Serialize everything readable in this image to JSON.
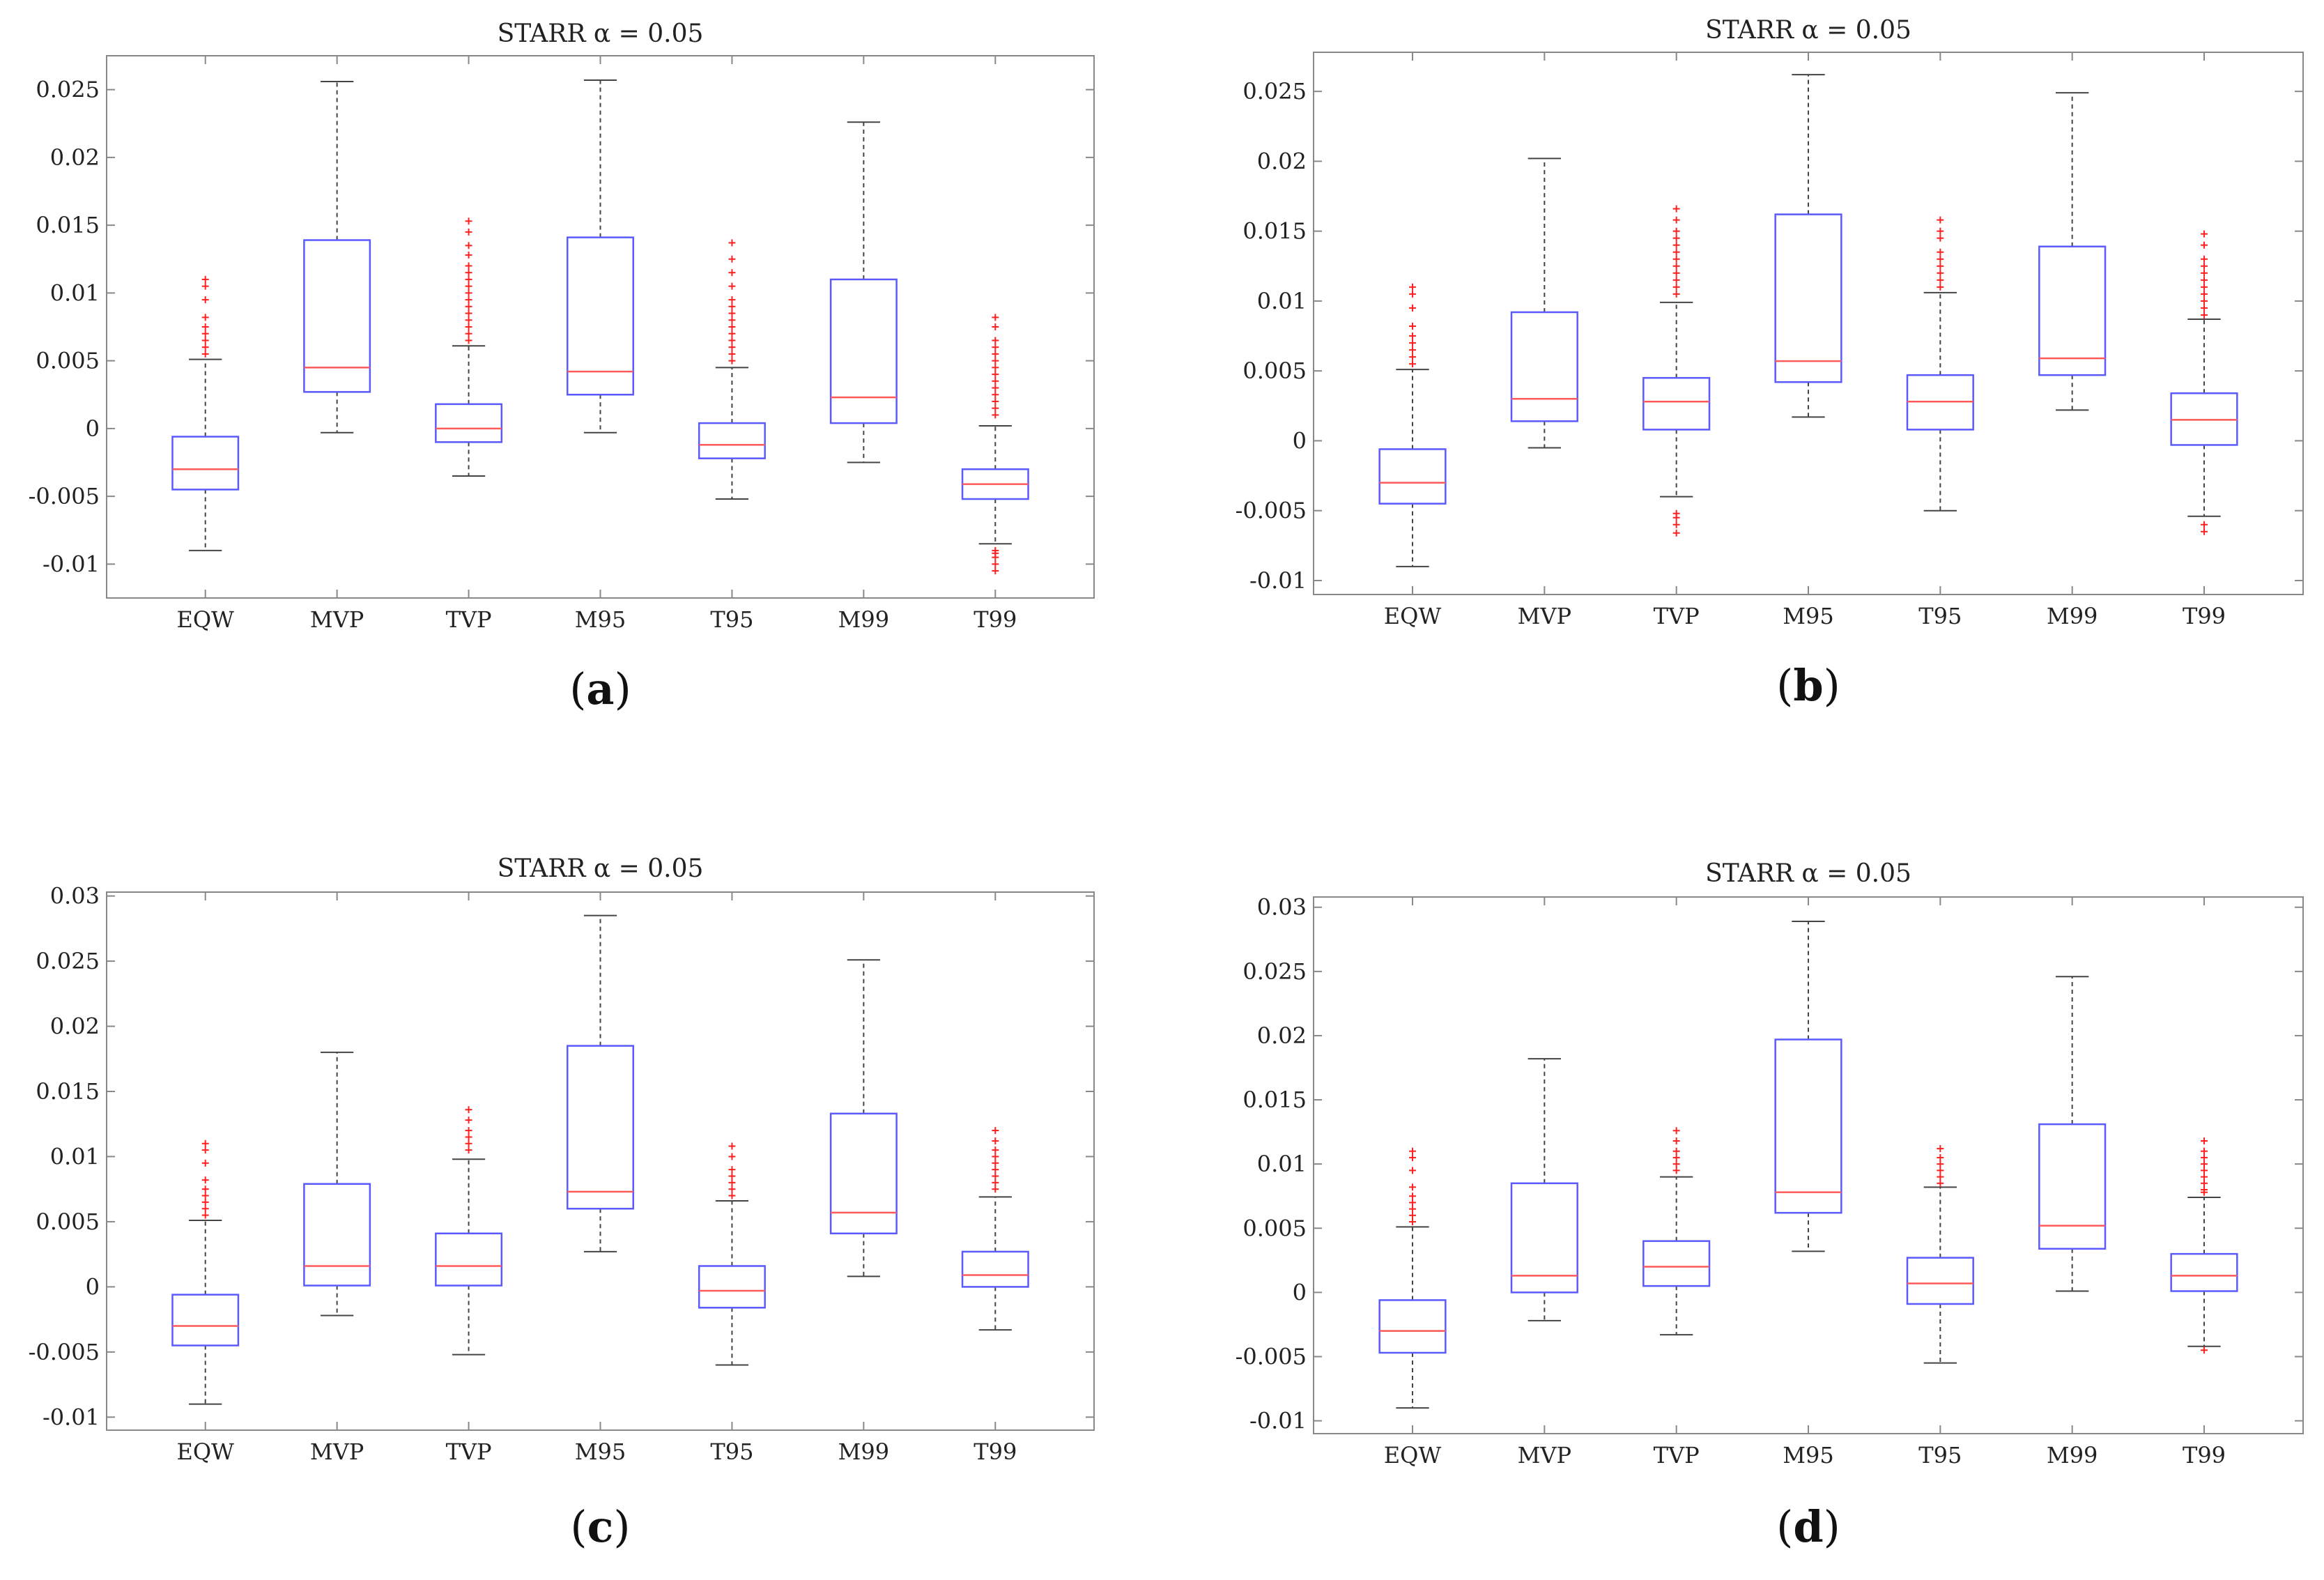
{
  "colors": {
    "box": "#5a5aff",
    "median": "#ff5a5a",
    "whisker": "#444444",
    "outlier": "#ff2020",
    "frame": "#888888"
  },
  "chart_data": [
    {
      "type": "box",
      "panel": "(a)",
      "panel_letter": "a",
      "title": "STARR α = 0.05",
      "categories": [
        "EQW",
        "MVP",
        "TVP",
        "M95",
        "T95",
        "M99",
        "T99"
      ],
      "ylim": [
        -0.0125,
        0.0275
      ],
      "yticks": [
        -0.01,
        -0.005,
        0,
        0.005,
        0.01,
        0.015,
        0.02,
        0.025
      ],
      "ytick_labels": [
        "-0.01",
        "-0.005",
        "0",
        "0.005",
        "0.01",
        "0.015",
        "0.02",
        "0.025"
      ],
      "boxes": [
        {
          "lw": -0.009,
          "q1": -0.0045,
          "med": -0.003,
          "q3": -0.0006,
          "uw": 0.0051,
          "out": [
            0.0055,
            0.006,
            0.0065,
            0.007,
            0.0075,
            0.0082,
            0.0095,
            0.0105,
            0.011
          ]
        },
        {
          "lw": -0.0003,
          "q1": 0.0027,
          "med": 0.0045,
          "q3": 0.0139,
          "uw": 0.0256,
          "out": []
        },
        {
          "lw": -0.0035,
          "q1": -0.001,
          "med": 0.0,
          "q3": 0.0018,
          "uw": 0.0061,
          "out": [
            0.0065,
            0.007,
            0.0075,
            0.008,
            0.0085,
            0.009,
            0.0095,
            0.01,
            0.0105,
            0.011,
            0.0115,
            0.012,
            0.0128,
            0.0135,
            0.0145,
            0.0153
          ]
        },
        {
          "lw": -0.0003,
          "q1": 0.0025,
          "med": 0.0042,
          "q3": 0.0141,
          "uw": 0.0257,
          "out": []
        },
        {
          "lw": -0.0052,
          "q1": -0.0022,
          "med": -0.0012,
          "q3": 0.0004,
          "uw": 0.0045,
          "out": [
            0.005,
            0.0055,
            0.006,
            0.0065,
            0.007,
            0.0075,
            0.008,
            0.0085,
            0.009,
            0.0095,
            0.0105,
            0.0115,
            0.0125,
            0.0137
          ]
        },
        {
          "lw": -0.0025,
          "q1": 0.0004,
          "med": 0.0023,
          "q3": 0.011,
          "uw": 0.0226,
          "out": []
        },
        {
          "lw": -0.0085,
          "q1": -0.0052,
          "med": -0.0041,
          "q3": -0.003,
          "uw": 0.0002,
          "out": [
            0.001,
            0.0015,
            0.002,
            0.0025,
            0.003,
            0.0035,
            0.004,
            0.0045,
            0.005,
            0.0055,
            0.006,
            0.0065,
            0.0075,
            0.0082,
            -0.009,
            -0.0092,
            -0.0095,
            -0.01,
            -0.0105
          ]
        }
      ]
    },
    {
      "type": "box",
      "panel": "(b)",
      "panel_letter": "b",
      "title": "STARR α = 0.05",
      "categories": [
        "EQW",
        "MVP",
        "TVP",
        "M95",
        "T95",
        "M99",
        "T99"
      ],
      "ylim": [
        -0.011,
        0.0278
      ],
      "yticks": [
        -0.01,
        -0.005,
        0,
        0.005,
        0.01,
        0.015,
        0.02,
        0.025
      ],
      "ytick_labels": [
        "-0.01",
        "-0.005",
        "0",
        "0.005",
        "0.01",
        "0.015",
        "0.02",
        "0.025"
      ],
      "boxes": [
        {
          "lw": -0.009,
          "q1": -0.0045,
          "med": -0.003,
          "q3": -0.0006,
          "uw": 0.0051,
          "out": [
            0.0055,
            0.006,
            0.0065,
            0.007,
            0.0075,
            0.0082,
            0.0095,
            0.0105,
            0.011
          ]
        },
        {
          "lw": -0.0005,
          "q1": 0.0014,
          "med": 0.003,
          "q3": 0.0092,
          "uw": 0.0202,
          "out": []
        },
        {
          "lw": -0.004,
          "q1": 0.0008,
          "med": 0.0028,
          "q3": 0.0045,
          "uw": 0.0099,
          "out": [
            0.0105,
            0.011,
            0.0115,
            0.012,
            0.0125,
            0.013,
            0.0135,
            0.014,
            0.0145,
            0.015,
            0.0158,
            0.0166,
            -0.0052,
            -0.0055,
            -0.006,
            -0.0066
          ]
        },
        {
          "lw": 0.0017,
          "q1": 0.0042,
          "med": 0.0057,
          "q3": 0.0162,
          "uw": 0.0262,
          "out": []
        },
        {
          "lw": -0.005,
          "q1": 0.0008,
          "med": 0.0028,
          "q3": 0.0047,
          "uw": 0.0106,
          "out": [
            0.011,
            0.0115,
            0.012,
            0.0125,
            0.013,
            0.0135,
            0.0145,
            0.015,
            0.0158
          ]
        },
        {
          "lw": 0.0022,
          "q1": 0.0047,
          "med": 0.0059,
          "q3": 0.0139,
          "uw": 0.0249,
          "out": []
        },
        {
          "lw": -0.0054,
          "q1": -0.0003,
          "med": 0.0015,
          "q3": 0.0034,
          "uw": 0.0087,
          "out": [
            0.009,
            0.0095,
            0.01,
            0.0105,
            0.011,
            0.0115,
            0.012,
            0.0125,
            0.013,
            0.014,
            0.0148,
            -0.006,
            -0.0065
          ]
        }
      ]
    },
    {
      "type": "box",
      "panel": "(c)",
      "panel_letter": "c",
      "title": "STARR α = 0.05",
      "categories": [
        "EQW",
        "MVP",
        "TVP",
        "M95",
        "T95",
        "M99",
        "T99"
      ],
      "ylim": [
        -0.011,
        0.0303
      ],
      "yticks": [
        -0.01,
        -0.005,
        0,
        0.005,
        0.01,
        0.015,
        0.02,
        0.025,
        0.03
      ],
      "ytick_labels": [
        "-0.01",
        "-0.005",
        "0",
        "0.005",
        "0.01",
        "0.015",
        "0.02",
        "0.025",
        "0.03"
      ],
      "boxes": [
        {
          "lw": -0.009,
          "q1": -0.0045,
          "med": -0.003,
          "q3": -0.0006,
          "uw": 0.0051,
          "out": [
            0.0055,
            0.006,
            0.0065,
            0.007,
            0.0075,
            0.0082,
            0.0095,
            0.0105,
            0.011
          ]
        },
        {
          "lw": -0.0022,
          "q1": 0.0001,
          "med": 0.0016,
          "q3": 0.0079,
          "uw": 0.018,
          "out": []
        },
        {
          "lw": -0.0052,
          "q1": 0.0001,
          "med": 0.0016,
          "q3": 0.0041,
          "uw": 0.0098,
          "out": [
            0.0105,
            0.011,
            0.0115,
            0.012,
            0.0128,
            0.0136
          ]
        },
        {
          "lw": 0.0027,
          "q1": 0.006,
          "med": 0.0073,
          "q3": 0.0185,
          "uw": 0.0285,
          "out": []
        },
        {
          "lw": -0.006,
          "q1": -0.0016,
          "med": -0.0003,
          "q3": 0.0016,
          "uw": 0.0066,
          "out": [
            0.007,
            0.0075,
            0.008,
            0.0085,
            0.009,
            0.01,
            0.0108
          ]
        },
        {
          "lw": 0.0008,
          "q1": 0.0041,
          "med": 0.0057,
          "q3": 0.0133,
          "uw": 0.0251,
          "out": []
        },
        {
          "lw": -0.0033,
          "q1": 0.0,
          "med": 0.0009,
          "q3": 0.0027,
          "uw": 0.0069,
          "out": [
            0.0075,
            0.008,
            0.0085,
            0.009,
            0.0095,
            0.01,
            0.0105,
            0.0112,
            0.012
          ]
        }
      ]
    },
    {
      "type": "box",
      "panel": "(d)",
      "panel_letter": "d",
      "title": "STARR α = 0.05",
      "categories": [
        "EQW",
        "MVP",
        "TVP",
        "M95",
        "T95",
        "M99",
        "T99"
      ],
      "ylim": [
        -0.011,
        0.0308
      ],
      "yticks": [
        -0.01,
        -0.005,
        0,
        0.005,
        0.01,
        0.015,
        0.02,
        0.025,
        0.03
      ],
      "ytick_labels": [
        "-0.01",
        "-0.005",
        "0",
        "0.005",
        "0.01",
        "0.015",
        "0.02",
        "0.025",
        "0.03"
      ],
      "boxes": [
        {
          "lw": -0.009,
          "q1": -0.0047,
          "med": -0.003,
          "q3": -0.0006,
          "uw": 0.0051,
          "out": [
            0.0055,
            0.006,
            0.0065,
            0.007,
            0.0075,
            0.0082,
            0.0095,
            0.0105,
            0.011
          ]
        },
        {
          "lw": -0.0022,
          "q1": 0.0,
          "med": 0.0013,
          "q3": 0.0085,
          "uw": 0.0182,
          "out": []
        },
        {
          "lw": -0.0033,
          "q1": 0.0005,
          "med": 0.002,
          "q3": 0.004,
          "uw": 0.009,
          "out": [
            0.0095,
            0.01,
            0.0105,
            0.011,
            0.0118,
            0.0126
          ]
        },
        {
          "lw": 0.0032,
          "q1": 0.0062,
          "med": 0.0078,
          "q3": 0.0197,
          "uw": 0.0289,
          "out": []
        },
        {
          "lw": -0.0055,
          "q1": -0.0009,
          "med": 0.0007,
          "q3": 0.0027,
          "uw": 0.0082,
          "out": [
            0.0085,
            0.009,
            0.0095,
            0.01,
            0.0105,
            0.0112
          ]
        },
        {
          "lw": 0.0001,
          "q1": 0.0034,
          "med": 0.0052,
          "q3": 0.0131,
          "uw": 0.0246,
          "out": []
        },
        {
          "lw": -0.0042,
          "q1": 0.0001,
          "med": 0.0013,
          "q3": 0.003,
          "uw": 0.0074,
          "out": [
            0.0078,
            0.008,
            0.0085,
            0.009,
            0.0095,
            0.01,
            0.0105,
            0.011,
            0.0118,
            -0.0045
          ]
        }
      ]
    }
  ]
}
